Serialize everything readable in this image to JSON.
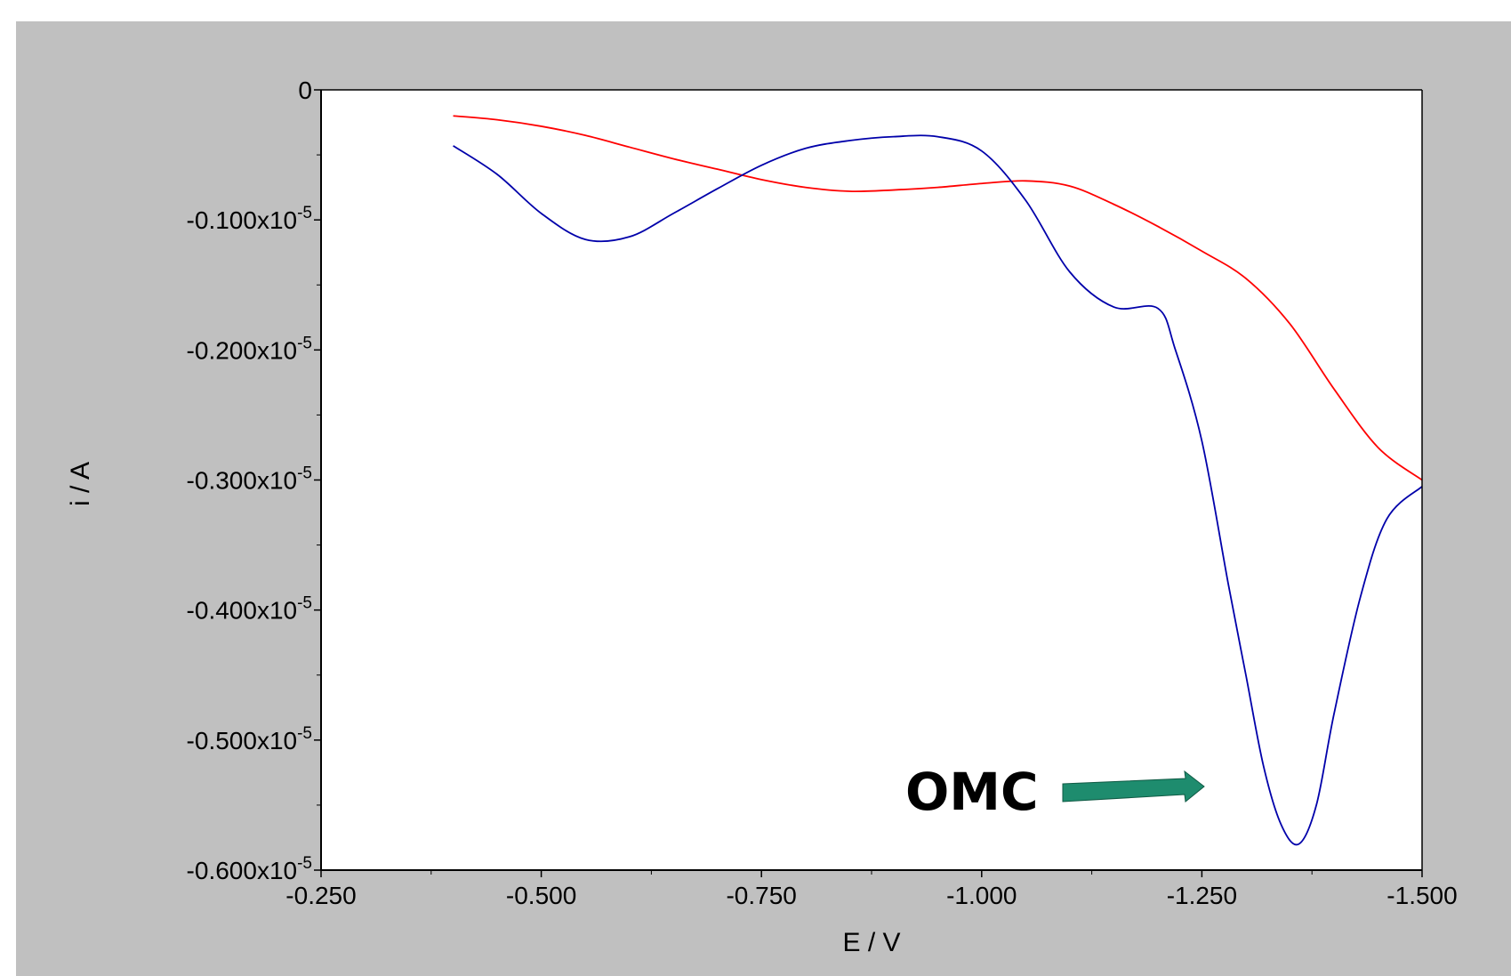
{
  "chart_data": {
    "type": "line",
    "title": "",
    "xlabel": "E / V",
    "ylabel": "i / A",
    "xlim": [
      -0.25,
      -1.5
    ],
    "ylim": [
      -0.6,
      0
    ],
    "y_unit_multiplier_label": "x10",
    "y_unit_exponent": "-5",
    "x_ticks": [
      {
        "value": -0.25,
        "label": "-0.250"
      },
      {
        "value": -0.5,
        "label": "-0.500"
      },
      {
        "value": -0.75,
        "label": "-0.750"
      },
      {
        "value": -1.0,
        "label": "-1.000"
      },
      {
        "value": -1.25,
        "label": "-1.250"
      },
      {
        "value": -1.5,
        "label": "-1.500"
      }
    ],
    "y_ticks": [
      {
        "value": 0,
        "label": "0",
        "exp": ""
      },
      {
        "value": -0.1,
        "label": "-0.100x10",
        "exp": "-5"
      },
      {
        "value": -0.2,
        "label": "-0.200x10",
        "exp": "-5"
      },
      {
        "value": -0.3,
        "label": "-0.300x10",
        "exp": "-5"
      },
      {
        "value": -0.4,
        "label": "-0.400x10",
        "exp": "-5"
      },
      {
        "value": -0.5,
        "label": "-0.500x10",
        "exp": "-5"
      },
      {
        "value": -0.6,
        "label": "-0.600x10",
        "exp": "-5"
      }
    ],
    "series": [
      {
        "color": "#ff0000",
        "x": [
          -0.4,
          -0.45,
          -0.5,
          -0.55,
          -0.6,
          -0.65,
          -0.7,
          -0.75,
          -0.8,
          -0.85,
          -0.9,
          -0.95,
          -1.0,
          -1.05,
          -1.1,
          -1.15,
          -1.2,
          -1.25,
          -1.3,
          -1.35,
          -1.4,
          -1.45,
          -1.5
        ],
        "y": [
          -0.02,
          -0.023,
          -0.028,
          -0.035,
          -0.044,
          -0.053,
          -0.061,
          -0.069,
          -0.075,
          -0.078,
          -0.077,
          -0.075,
          -0.072,
          -0.07,
          -0.074,
          -0.088,
          -0.105,
          -0.124,
          -0.145,
          -0.18,
          -0.23,
          -0.275,
          -0.3
        ]
      },
      {
        "color": "#0000aa",
        "x": [
          -0.4,
          -0.45,
          -0.5,
          -0.55,
          -0.6,
          -0.65,
          -0.7,
          -0.75,
          -0.8,
          -0.85,
          -0.9,
          -0.95,
          -1.0,
          -1.05,
          -1.1,
          -1.15,
          -1.2,
          -1.22,
          -1.25,
          -1.28,
          -1.3,
          -1.32,
          -1.34,
          -1.36,
          -1.38,
          -1.4,
          -1.43,
          -1.46,
          -1.5
        ],
        "y": [
          -0.043,
          -0.065,
          -0.095,
          -0.115,
          -0.113,
          -0.095,
          -0.076,
          -0.058,
          -0.045,
          -0.039,
          -0.036,
          -0.036,
          -0.047,
          -0.085,
          -0.14,
          -0.167,
          -0.168,
          -0.2,
          -0.27,
          -0.38,
          -0.45,
          -0.52,
          -0.565,
          -0.58,
          -0.55,
          -0.48,
          -0.39,
          -0.33,
          -0.305
        ]
      }
    ],
    "annotation": {
      "text": "OMC",
      "arrow_color": "#1e8c6e"
    }
  }
}
